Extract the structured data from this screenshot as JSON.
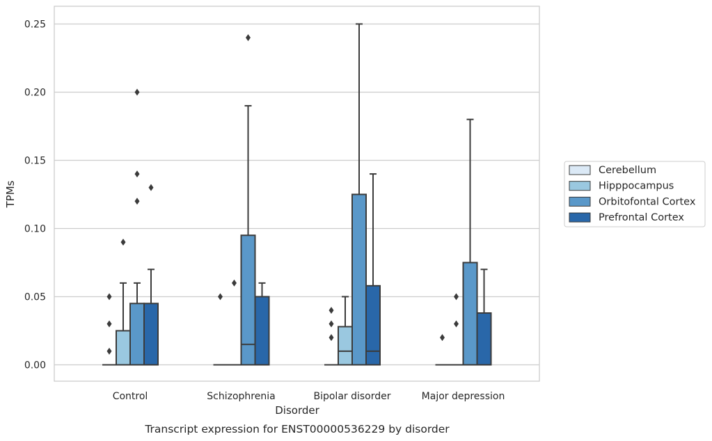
{
  "chart_data": {
    "type": "box",
    "caption": "Transcript expression for ENST00000536229 by disorder",
    "xlabel": "Disorder",
    "ylabel": "TPMs",
    "ylim": [
      -0.012,
      0.263
    ],
    "yticks": [
      0.0,
      0.05,
      0.1,
      0.15,
      0.2,
      0.25
    ],
    "ytick_labels": [
      "0.00",
      "0.05",
      "0.10",
      "0.15",
      "0.20",
      "0.25"
    ],
    "grid": "horizontal",
    "legend_position": "outside-right",
    "categories": [
      "Control",
      "Schizophrenia",
      "Bipolar disorder",
      "Major depression"
    ],
    "series": [
      {
        "name": "Cerebellum",
        "color": "#dbe9f6",
        "boxes": [
          {
            "q1": 0,
            "median": 0,
            "q3": 0,
            "whisker_low": 0,
            "whisker_high": 0,
            "outliers": [
              0.01,
              0.03,
              0.05
            ]
          },
          {
            "q1": 0,
            "median": 0,
            "q3": 0,
            "whisker_low": 0,
            "whisker_high": 0,
            "outliers": [
              0.05
            ]
          },
          {
            "q1": 0,
            "median": 0,
            "q3": 0,
            "whisker_low": 0,
            "whisker_high": 0,
            "outliers": [
              0.02,
              0.03,
              0.04
            ]
          },
          {
            "q1": 0,
            "median": 0,
            "q3": 0,
            "whisker_low": 0,
            "whisker_high": 0,
            "outliers": [
              0.02
            ]
          }
        ]
      },
      {
        "name": "Hipppocampus",
        "color": "#9ac8e0",
        "boxes": [
          {
            "q1": 0,
            "median": 0,
            "q3": 0.025,
            "whisker_low": 0,
            "whisker_high": 0.06,
            "outliers": [
              0.09
            ]
          },
          {
            "q1": 0,
            "median": 0,
            "q3": 0,
            "whisker_low": 0,
            "whisker_high": 0,
            "outliers": [
              0.06
            ]
          },
          {
            "q1": 0,
            "median": 0.01,
            "q3": 0.028,
            "whisker_low": 0,
            "whisker_high": 0.05,
            "outliers": []
          },
          {
            "q1": 0,
            "median": 0,
            "q3": 0,
            "whisker_low": 0,
            "whisker_high": 0,
            "outliers": [
              0.03,
              0.05
            ]
          }
        ]
      },
      {
        "name": "Orbitofontal Cortex",
        "color": "#5a98c9",
        "boxes": [
          {
            "q1": 0,
            "median": 0,
            "q3": 0.045,
            "whisker_low": 0,
            "whisker_high": 0.06,
            "outliers": [
              0.12,
              0.14,
              0.2
            ]
          },
          {
            "q1": 0,
            "median": 0.015,
            "q3": 0.095,
            "whisker_low": 0,
            "whisker_high": 0.19,
            "outliers": [
              0.24
            ]
          },
          {
            "q1": 0,
            "median": 0,
            "q3": 0.125,
            "whisker_low": 0,
            "whisker_high": 0.25,
            "outliers": []
          },
          {
            "q1": 0,
            "median": 0,
            "q3": 0.075,
            "whisker_low": 0,
            "whisker_high": 0.18,
            "outliers": []
          }
        ]
      },
      {
        "name": "Prefrontal Cortex",
        "color": "#2967a9",
        "boxes": [
          {
            "q1": 0,
            "median": 0,
            "q3": 0.045,
            "whisker_low": 0,
            "whisker_high": 0.07,
            "outliers": [
              0.13
            ]
          },
          {
            "q1": 0,
            "median": 0,
            "q3": 0.05,
            "whisker_low": 0,
            "whisker_high": 0.06,
            "outliers": []
          },
          {
            "q1": 0,
            "median": 0.01,
            "q3": 0.058,
            "whisker_low": 0,
            "whisker_high": 0.14,
            "outliers": []
          },
          {
            "q1": 0,
            "median": 0,
            "q3": 0.038,
            "whisker_low": 0,
            "whisker_high": 0.07,
            "outliers": []
          }
        ]
      }
    ]
  }
}
